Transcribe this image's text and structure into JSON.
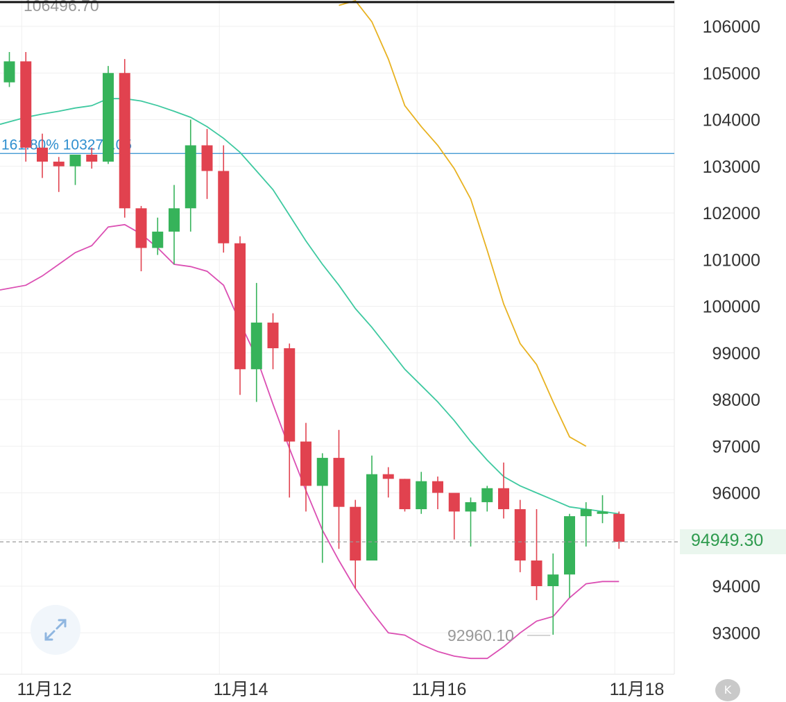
{
  "chart_data": {
    "type": "candlestick",
    "title": "",
    "xlabel": "",
    "ylabel": "",
    "ylim": [
      92150,
      106450
    ],
    "y_ticks": [
      93000,
      94000,
      95000,
      96000,
      97000,
      98000,
      99000,
      100000,
      101000,
      102000,
      103000,
      104000,
      105000,
      106000
    ],
    "y_tick_labels": [
      "93000",
      "94000",
      "95000",
      "96000",
      "97000",
      "98000",
      "99000",
      "100000",
      "101000",
      "102000",
      "103000",
      "104000",
      "105000",
      "106000"
    ],
    "x_tick_labels": [
      "11月12",
      "11月14",
      "11月16",
      "11月18"
    ],
    "x_tick_candle_index": [
      1,
      13,
      25,
      37
    ],
    "candles": [
      {
        "o": 104800,
        "h": 105450,
        "l": 104700,
        "c": 105250
      },
      {
        "o": 105250,
        "h": 105450,
        "l": 103100,
        "c": 103400
      },
      {
        "o": 103400,
        "h": 103700,
        "l": 102750,
        "c": 103100
      },
      {
        "o": 103100,
        "h": 103200,
        "l": 102450,
        "c": 103000
      },
      {
        "o": 103000,
        "h": 103200,
        "l": 102600,
        "c": 103250
      },
      {
        "o": 103250,
        "h": 103400,
        "l": 102950,
        "c": 103100
      },
      {
        "o": 103100,
        "h": 105150,
        "l": 103050,
        "c": 105000
      },
      {
        "o": 105000,
        "h": 105300,
        "l": 101900,
        "c": 102100
      },
      {
        "o": 102100,
        "h": 102150,
        "l": 100750,
        "c": 101250
      },
      {
        "o": 101250,
        "h": 101900,
        "l": 101100,
        "c": 101600
      },
      {
        "o": 101600,
        "h": 102600,
        "l": 100900,
        "c": 102100
      },
      {
        "o": 102100,
        "h": 104000,
        "l": 101600,
        "c": 103450
      },
      {
        "o": 103450,
        "h": 103800,
        "l": 102300,
        "c": 102900
      },
      {
        "o": 102900,
        "h": 103450,
        "l": 101150,
        "c": 101350
      },
      {
        "o": 101350,
        "h": 101500,
        "l": 98100,
        "c": 98650
      },
      {
        "o": 98650,
        "h": 100500,
        "l": 97950,
        "c": 99650
      },
      {
        "o": 99650,
        "h": 99850,
        "l": 98650,
        "c": 99100
      },
      {
        "o": 99100,
        "h": 99200,
        "l": 95900,
        "c": 97100
      },
      {
        "o": 97100,
        "h": 97500,
        "l": 95600,
        "c": 96150
      },
      {
        "o": 96150,
        "h": 96850,
        "l": 94500,
        "c": 96750
      },
      {
        "o": 96750,
        "h": 97350,
        "l": 94800,
        "c": 95700
      },
      {
        "o": 95700,
        "h": 95850,
        "l": 93950,
        "c": 94550
      },
      {
        "o": 94550,
        "h": 96800,
        "l": 94550,
        "c": 96400
      },
      {
        "o": 96400,
        "h": 96550,
        "l": 95900,
        "c": 96300
      },
      {
        "o": 96300,
        "h": 96300,
        "l": 95600,
        "c": 95650
      },
      {
        "o": 95650,
        "h": 96450,
        "l": 95550,
        "c": 96250
      },
      {
        "o": 96250,
        "h": 96350,
        "l": 95650,
        "c": 96000
      },
      {
        "o": 96000,
        "h": 96000,
        "l": 95000,
        "c": 95600
      },
      {
        "o": 95600,
        "h": 95900,
        "l": 94850,
        "c": 95800
      },
      {
        "o": 95800,
        "h": 96150,
        "l": 95600,
        "c": 96100
      },
      {
        "o": 96100,
        "h": 96650,
        "l": 95450,
        "c": 95650
      },
      {
        "o": 95650,
        "h": 95850,
        "l": 94300,
        "c": 94550
      },
      {
        "o": 94550,
        "h": 95650,
        "l": 93700,
        "c": 94000
      },
      {
        "o": 94000,
        "h": 94700,
        "l": 92960,
        "c": 94250
      },
      {
        "o": 94250,
        "h": 95550,
        "l": 93750,
        "c": 95500
      },
      {
        "o": 95500,
        "h": 95800,
        "l": 94850,
        "c": 95650
      },
      {
        "o": 95550,
        "h": 95950,
        "l": 95350,
        "c": 95600
      },
      {
        "o": 95550,
        "h": 95600,
        "l": 94800,
        "c": 94950
      }
    ],
    "series": [
      {
        "values": [
          103900,
          104050,
          104120,
          104180,
          104250,
          104300,
          104450,
          104450,
          104400,
          104300,
          104180,
          104050,
          103850,
          103600,
          103300,
          102900,
          102500,
          101950,
          101400,
          100900,
          100450,
          99950,
          99550,
          99100,
          98650,
          98300,
          97950,
          97550,
          97100,
          96700,
          96350,
          96150,
          96000,
          95850,
          95700,
          95650,
          95600,
          95550
        ],
        "color": "#3ec9a0"
      },
      {
        "values": [
          100350,
          100450,
          100650,
          100900,
          101150,
          101300,
          101700,
          101750,
          101550,
          101250,
          100900,
          100850,
          100750,
          100450,
          99650,
          98900,
          97900,
          96950,
          96050,
          95200,
          94550,
          93950,
          93450,
          93000,
          92950,
          92750,
          92600,
          92500,
          92450,
          92450,
          92700,
          93000,
          93250,
          93350,
          93750,
          94050,
          94100,
          94100
        ],
        "color": "#db4fb3"
      },
      {
        "start_index": 20,
        "values": [
          106450,
          106550,
          106100,
          105300,
          104300,
          103850,
          103450,
          102950,
          102300,
          101200,
          100050,
          99200,
          98750,
          97950,
          97200,
          97000
        ],
        "color": "#e8b221"
      }
    ],
    "fib_line": {
      "label": "161.80% 103275.05",
      "value": 103275.05,
      "color": "#2f8fcf"
    },
    "last_price": {
      "label": "94949.30",
      "value": 94949.3
    },
    "high_label": "106496.70",
    "low_label": "92960.10",
    "up_color": "#36b35a",
    "down_color": "#e1424f"
  },
  "icons": {
    "expand": "expand-arrows-icon",
    "k": "k-circle-icon"
  },
  "k_button_label": "K"
}
